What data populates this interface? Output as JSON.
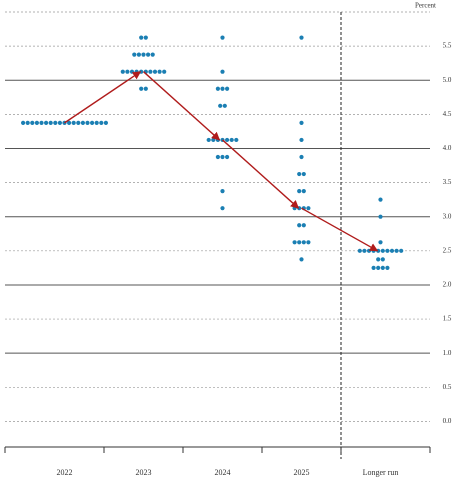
{
  "chart_data": {
    "type": "dot_plot",
    "y_label": "Percent",
    "categories": [
      "2022",
      "2023",
      "2024",
      "2025",
      "Longer run"
    ],
    "dots": [
      [
        {
          "value": 4.375,
          "count": 19
        }
      ],
      [
        {
          "value": 5.625,
          "count": 2
        },
        {
          "value": 5.375,
          "count": 5
        },
        {
          "value": 5.125,
          "count": 10
        },
        {
          "value": 4.875,
          "count": 2
        }
      ],
      [
        {
          "value": 5.625,
          "count": 1
        },
        {
          "value": 5.125,
          "count": 1
        },
        {
          "value": 4.875,
          "count": 3
        },
        {
          "value": 4.625,
          "count": 2
        },
        {
          "value": 4.125,
          "count": 7
        },
        {
          "value": 3.875,
          "count": 3
        },
        {
          "value": 3.375,
          "count": 1
        },
        {
          "value": 3.125,
          "count": 1
        }
      ],
      [
        {
          "value": 5.625,
          "count": 1
        },
        {
          "value": 4.375,
          "count": 1
        },
        {
          "value": 4.125,
          "count": 1
        },
        {
          "value": 3.875,
          "count": 1
        },
        {
          "value": 3.625,
          "count": 2
        },
        {
          "value": 3.375,
          "count": 2
        },
        {
          "value": 3.125,
          "count": 4
        },
        {
          "value": 2.875,
          "count": 2
        },
        {
          "value": 2.625,
          "count": 4
        },
        {
          "value": 2.375,
          "count": 1
        }
      ],
      [
        {
          "value": 3.25,
          "count": 1
        },
        {
          "value": 3.0,
          "count": 1
        },
        {
          "value": 2.625,
          "count": 1
        },
        {
          "value": 2.5,
          "count": 10
        },
        {
          "value": 2.375,
          "count": 2
        },
        {
          "value": 2.25,
          "count": 4
        }
      ]
    ],
    "medians": [
      4.375,
      5.125,
      4.125,
      3.125,
      2.5
    ],
    "dot_color": "#1b7fb3",
    "median_color": "#b01c1c",
    "ylim": [
      -0.375,
      6.0
    ],
    "yticks": [
      {
        "value": 0,
        "label": "0.0"
      },
      0.5,
      {
        "value": 1,
        "label": "1.0"
      },
      1.5,
      {
        "value": 2,
        "label": "2.0"
      },
      2.5,
      {
        "value": 3,
        "label": "3.0"
      },
      3.5,
      {
        "value": 4,
        "label": "4.0"
      },
      4.5,
      {
        "value": 5,
        "label": "5.0"
      },
      5.5
    ],
    "grid": true
  }
}
